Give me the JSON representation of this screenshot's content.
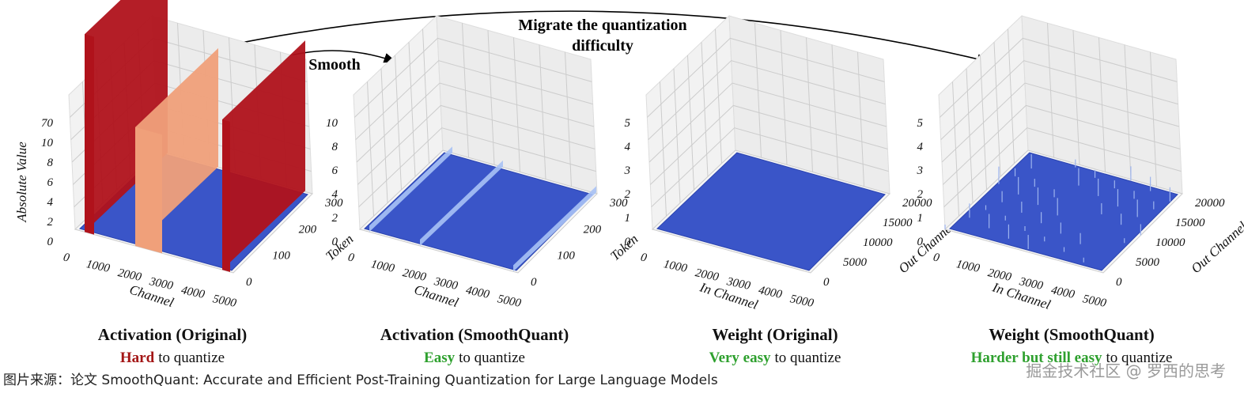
{
  "arrows": {
    "smooth": "Smooth",
    "migrate": [
      "Migrate the quantization",
      "difficulty"
    ]
  },
  "panels": [
    {
      "title": "Activation (Original)",
      "caption": {
        "emphasis": "Hard",
        "rest": "to quantize"
      },
      "z_label": "Absolute Value",
      "x_label": "Channel",
      "y_label": "Token",
      "z_ticks": [
        "0",
        "2",
        "4",
        "6",
        "8",
        "10",
        "70"
      ],
      "x_ticks": [
        "0",
        "1000",
        "2000",
        "3000",
        "4000",
        "5000"
      ],
      "y_ticks": [
        "0",
        "100",
        "200",
        "300"
      ]
    },
    {
      "title": "Activation (SmoothQuant)",
      "caption": {
        "emphasis": "Easy",
        "rest": "to quantize"
      },
      "x_label": "Channel",
      "y_label": "Token",
      "z_ticks": [
        "0",
        "2",
        "4",
        "6",
        "8",
        "10"
      ],
      "x_ticks": [
        "0",
        "1000",
        "2000",
        "3000",
        "4000",
        "5000"
      ],
      "y_ticks": [
        "0",
        "100",
        "200",
        "300"
      ]
    },
    {
      "title": "Weight (Original)",
      "caption": {
        "emphasis": "Very easy",
        "rest": "to quantize"
      },
      "x_label": "In Channel",
      "y_label": "Out Channel",
      "z_ticks": [
        "0",
        "1",
        "2",
        "3",
        "4",
        "5"
      ],
      "x_ticks": [
        "0",
        "1000",
        "2000",
        "3000",
        "4000",
        "5000"
      ],
      "y_ticks": [
        "0",
        "5000",
        "10000",
        "15000",
        "20000"
      ]
    },
    {
      "title": "Weight (SmoothQuant)",
      "caption": {
        "emphasis": "Harder but still easy",
        "rest": "to quantize"
      },
      "x_label": "In Channel",
      "y_label": "Out Channel",
      "z_ticks": [
        "0",
        "1",
        "2",
        "3",
        "4",
        "5"
      ],
      "x_ticks": [
        "0",
        "1000",
        "2000",
        "3000",
        "4000",
        "5000"
      ],
      "y_ticks": [
        "0",
        "5000",
        "10000",
        "15000",
        "20000"
      ]
    }
  ],
  "footer": "图片来源：论文 SmoothQuant: Accurate and Efficient Post-Training Quantization for Large Language Models",
  "watermark": "掘金技术社区 @ 罗西的思考"
}
